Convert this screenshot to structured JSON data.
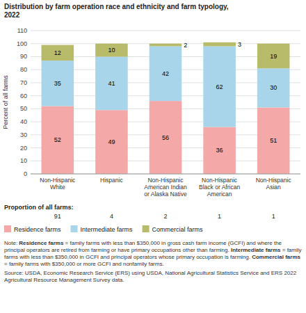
{
  "chart_data": {
    "type": "bar",
    "stacked": true,
    "data_labels": true,
    "grid": true,
    "title": "Distribution by farm operation race and ethnicity and farm typology,\n2022",
    "y_label": "Percent of all farms",
    "categories": [
      "Non-Hispanic\nWhite",
      "Hispanic",
      "Non-Hispanic\nAmerican Indian\nor Alaska Native",
      "Non-Hispanic\nBlack or African\nAmerican",
      "Non-Hispanic\nAsian"
    ],
    "series": [
      {
        "name": "Residence farms",
        "color": "#f5a8a8",
        "values": [
          52,
          49,
          56,
          36,
          51
        ]
      },
      {
        "name": "Intermediate farms",
        "color": "#a8d5ea",
        "values": [
          35,
          41,
          42,
          62,
          30
        ]
      },
      {
        "name": "Commercial farms",
        "color": "#b8bc6a",
        "values": [
          12,
          10,
          2,
          3,
          19
        ]
      }
    ],
    "ylim": [
      0,
      110
    ],
    "yticks": [
      0,
      10,
      20,
      30,
      40,
      50,
      60,
      70,
      80,
      90,
      100,
      110
    ],
    "proportion_label": "Proportion of all farms:",
    "proportions": [
      91,
      4,
      2,
      1,
      1
    ],
    "notes": [
      "Note: Residence farms = family farms with less than $350,000 in gross cash farm income (GCFI) and where the principal operators are retired from farming or have primary occupations other than farming. Intermediate farms = family farms with less than $350,000 in GCFI and principal operators whose primary occupation is farming. Commercial farms = family farms with $350,000 or more GCFI and nonfamily farms.",
      "Source: USDA, Economic Research Service (ERS) using USDA, National Agricultural Statistics Service and ERS 2022 Agricultural Resource Management Survey data."
    ]
  }
}
